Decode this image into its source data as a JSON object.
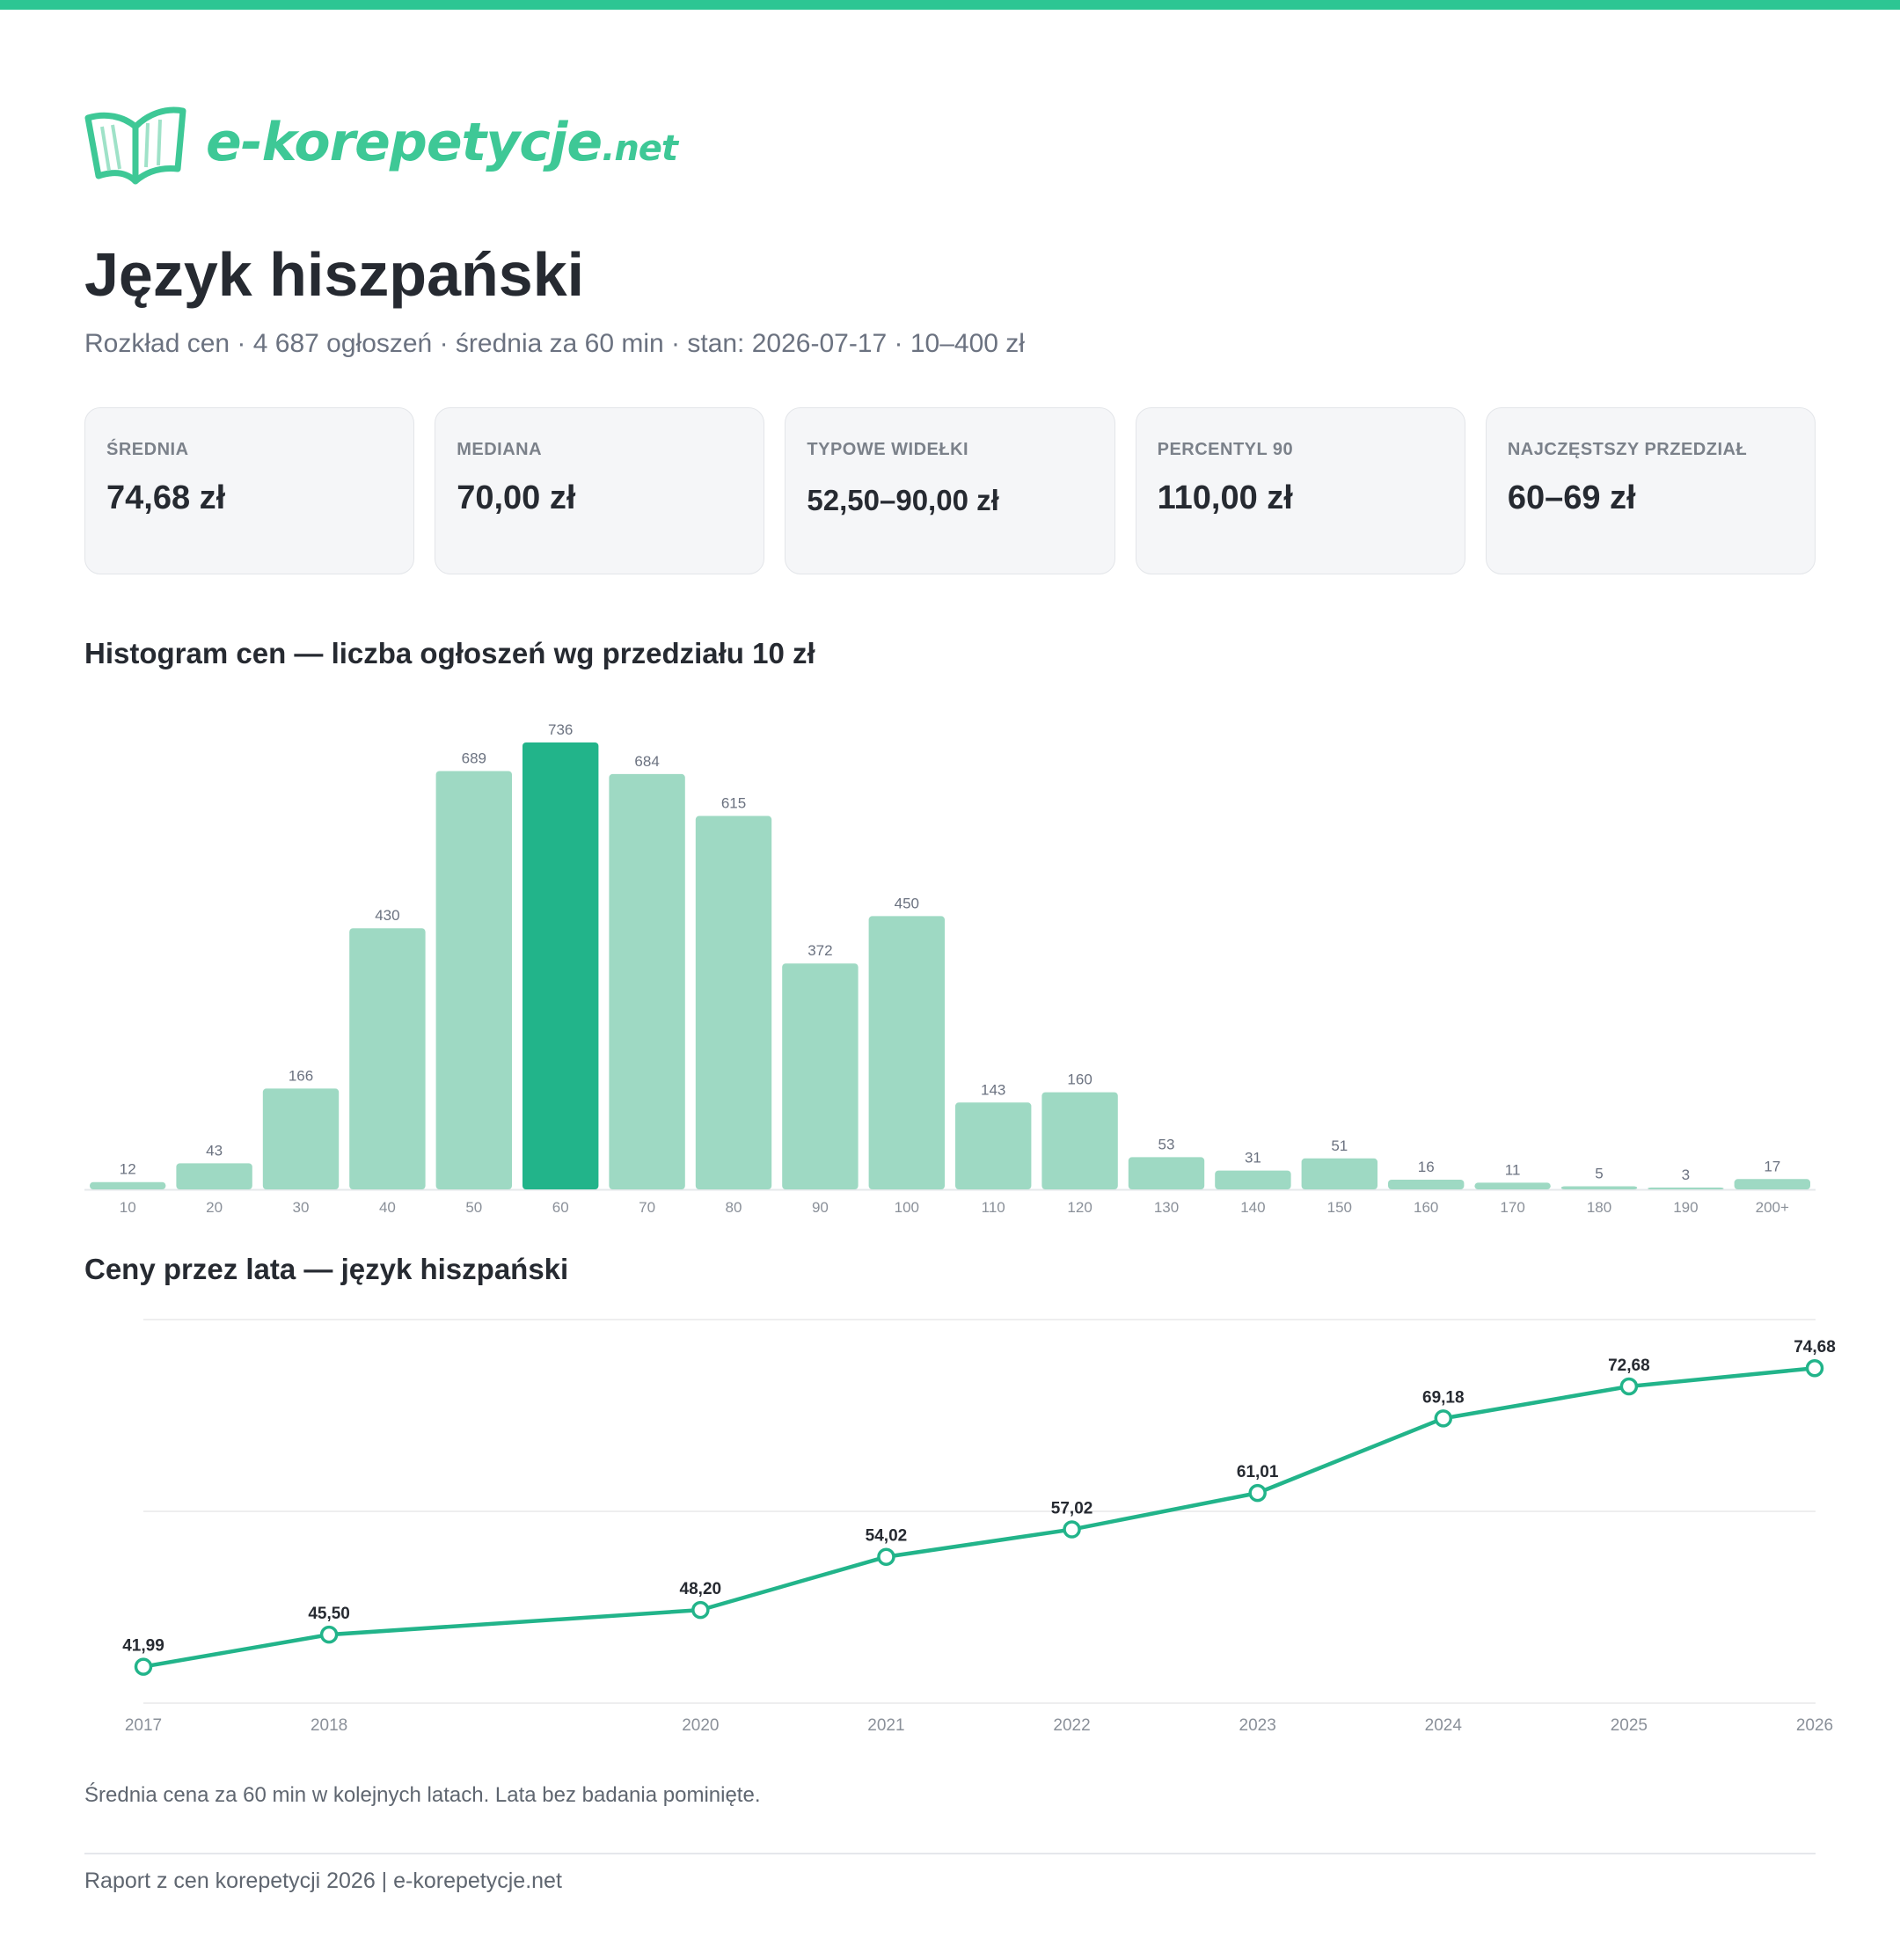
{
  "brand": {
    "name": "e-korepetycje",
    "tld": ".net",
    "color": "#3ec896"
  },
  "accent_color": "#2cc693",
  "header": {
    "title": "Język hiszpański",
    "subtitle": "Rozkład cen · 4 687 ogłoszeń · średnia za 60 min · stan: 2026-07-17 · 10–400 zł"
  },
  "stats": [
    {
      "label": "Średnia",
      "value": "74,68 zł"
    },
    {
      "label": "Mediana",
      "value": "70,00 zł"
    },
    {
      "label": "Typowe widełki",
      "value": "52,50–90,00 zł"
    },
    {
      "label": "Percentyl 90",
      "value": "110,00 zł"
    },
    {
      "label": "Najczęstszy przedział",
      "value": "60–69 zł"
    }
  ],
  "sections": {
    "histogram_title": "Histogram cen — liczba ogłoszeń wg przedziału 10 zł",
    "line_title": "Ceny przez lata — język hiszpański",
    "line_note": "Średnia cena za 60 min w kolejnych latach. Lata bez badania pominięte."
  },
  "footer": "Raport z cen korepetycji 2026 | e-korepetycje.net",
  "chart_data": [
    {
      "type": "bar",
      "title": "Histogram cen — liczba ogłoszeń wg przedziału 10 zł",
      "categories": [
        "10",
        "20",
        "30",
        "40",
        "50",
        "60",
        "70",
        "80",
        "90",
        "100",
        "110",
        "120",
        "130",
        "140",
        "150",
        "160",
        "170",
        "180",
        "190",
        "200+"
      ],
      "values": [
        12,
        43,
        166,
        430,
        689,
        736,
        684,
        615,
        372,
        450,
        143,
        160,
        53,
        31,
        51,
        16,
        11,
        5,
        3,
        17
      ],
      "highlight_category": "60",
      "colors": {
        "bar": "#9ed9c3",
        "highlight": "#22b48a",
        "label": "#6b7280"
      },
      "ylim": [
        0,
        736
      ]
    },
    {
      "type": "line",
      "title": "Ceny przez lata — język hiszpański",
      "x": [
        2017,
        2018,
        2020,
        2021,
        2022,
        2023,
        2024,
        2025,
        2026
      ],
      "values": [
        41.99,
        45.5,
        48.2,
        54.02,
        57.02,
        61.01,
        69.18,
        72.68,
        74.68
      ],
      "value_labels": [
        "41,99",
        "45,50",
        "48,20",
        "54,02",
        "57,02",
        "61,01",
        "69,18",
        "72,68",
        "74,68"
      ],
      "ylim": [
        38,
        80
      ],
      "grid": true,
      "colors": {
        "line": "#22b48a",
        "grid": "#e8e8ea"
      }
    }
  ]
}
